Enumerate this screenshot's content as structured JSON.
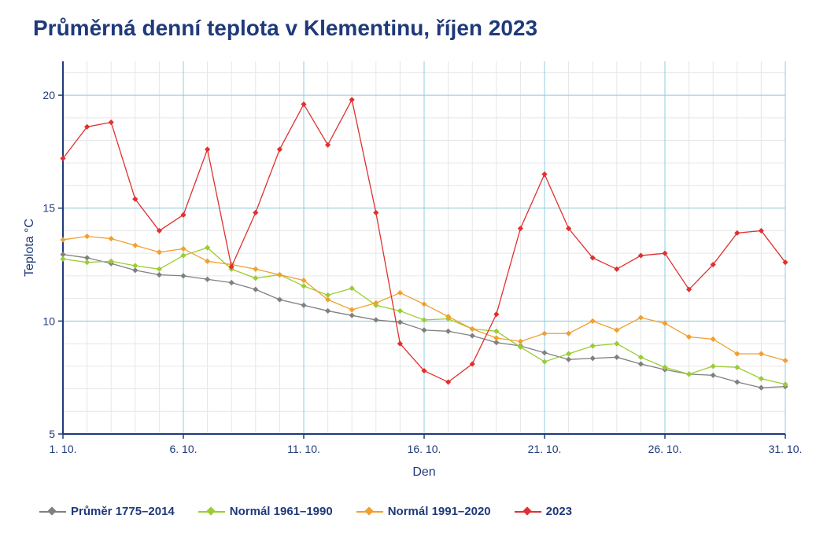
{
  "chart_data": {
    "type": "line",
    "title": "Průměrná denní teplota v Klementinu, říjen 2023",
    "xlabel": "Den",
    "ylabel": "Teplota  °C",
    "x": [
      1,
      2,
      3,
      4,
      5,
      6,
      7,
      8,
      9,
      10,
      11,
      12,
      13,
      14,
      15,
      16,
      17,
      18,
      19,
      20,
      21,
      22,
      23,
      24,
      25,
      26,
      27,
      28,
      29,
      30,
      31
    ],
    "xlim": [
      1,
      31
    ],
    "ylim": [
      5,
      21.5
    ],
    "x_ticks": [
      {
        "x": 1,
        "label": "1. 10."
      },
      {
        "x": 6,
        "label": "6. 10."
      },
      {
        "x": 11,
        "label": "11. 10."
      },
      {
        "x": 16,
        "label": "16. 10."
      },
      {
        "x": 21,
        "label": "21. 10."
      },
      {
        "x": 26,
        "label": "26. 10."
      },
      {
        "x": 31,
        "label": "31. 10."
      }
    ],
    "y_ticks": [
      {
        "y": 5,
        "label": "5"
      },
      {
        "y": 10,
        "label": "10"
      },
      {
        "y": 15,
        "label": "15"
      },
      {
        "y": 20,
        "label": "20"
      }
    ],
    "grid": true,
    "legend_position": "bottom",
    "series": [
      {
        "name": "Průměr 1775–2014",
        "color": "#808080",
        "values": [
          12.95,
          12.8,
          12.55,
          12.25,
          12.05,
          12.0,
          11.85,
          11.7,
          11.4,
          10.95,
          10.7,
          10.45,
          10.25,
          10.05,
          9.95,
          9.6,
          9.55,
          9.35,
          9.05,
          8.9,
          8.6,
          8.3,
          8.35,
          8.4,
          8.1,
          7.85,
          7.65,
          7.6,
          7.3,
          7.05,
          7.1
        ]
      },
      {
        "name": "Normál 1961–1990",
        "color": "#9acd32",
        "values": [
          12.75,
          12.6,
          12.65,
          12.45,
          12.3,
          12.9,
          13.25,
          12.3,
          11.9,
          12.05,
          11.55,
          11.15,
          11.45,
          10.7,
          10.45,
          10.05,
          10.1,
          9.65,
          9.55,
          8.85,
          8.2,
          8.55,
          8.9,
          9.0,
          8.4,
          7.95,
          7.65,
          8.0,
          7.95,
          7.45,
          7.2
        ]
      },
      {
        "name": "Normál 1991–2020",
        "color": "#f0a030",
        "values": [
          13.6,
          13.75,
          13.65,
          13.35,
          13.05,
          13.2,
          12.65,
          12.5,
          12.3,
          12.05,
          11.8,
          10.95,
          10.5,
          10.8,
          11.25,
          10.75,
          10.2,
          9.65,
          9.25,
          9.1,
          9.45,
          9.45,
          10.0,
          9.6,
          10.15,
          9.9,
          9.3,
          9.2,
          8.55,
          8.55,
          8.25
        ]
      },
      {
        "name": "2023",
        "color": "#e03030",
        "values": [
          17.2,
          18.6,
          18.8,
          15.4,
          14.0,
          14.7,
          17.6,
          12.4,
          14.8,
          17.6,
          19.6,
          17.8,
          19.8,
          14.8,
          9.0,
          7.8,
          7.3,
          8.1,
          10.3,
          14.1,
          16.5,
          14.1,
          12.8,
          12.3,
          12.9,
          13.0,
          11.4,
          12.5,
          13.9,
          14.0,
          12.6
        ]
      }
    ]
  }
}
